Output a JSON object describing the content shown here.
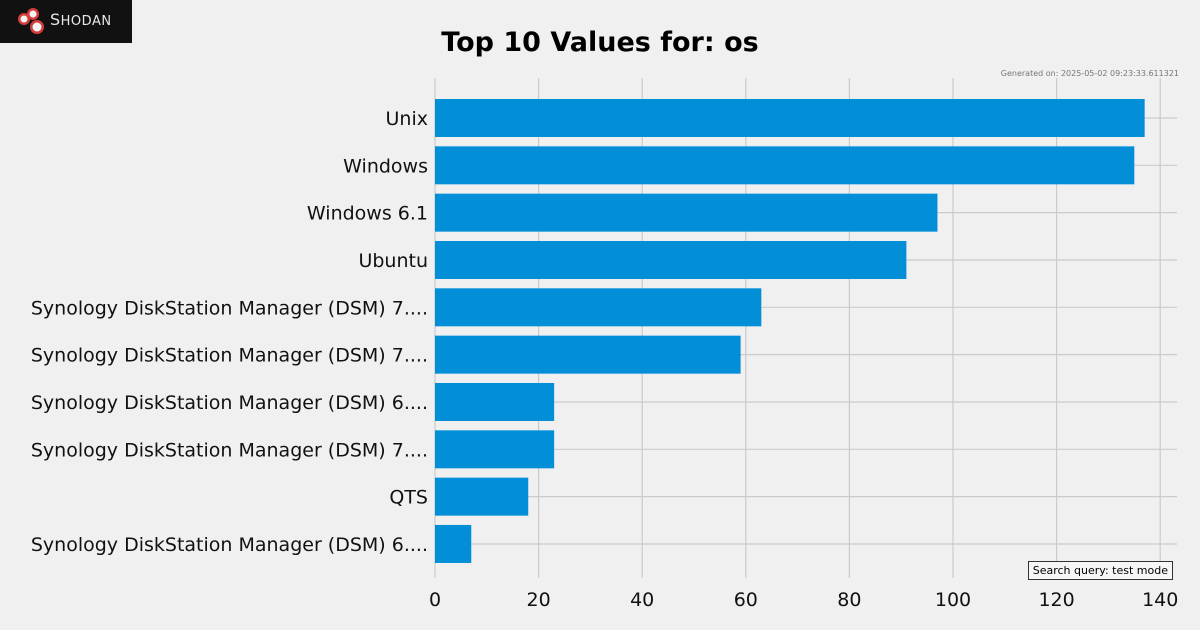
{
  "brand": {
    "name_initial": "S",
    "name_rest": "HODAN",
    "logo_icon": "shodan-logo-icon"
  },
  "generated_text": "Generated on: 2025-05-02 09:23:33.611321",
  "search_query_text": "Search query: test mode",
  "colors": {
    "bar": "#038fd7",
    "grid": "#cbcbcb",
    "background": "#f0f0f0",
    "logo_bg": "#111111",
    "logo_red": "#d63c3c"
  },
  "chart_data": {
    "type": "bar",
    "orientation": "horizontal",
    "title": "Top 10 Values for: os",
    "xlabel": "",
    "ylabel": "",
    "xlim": [
      0,
      143
    ],
    "xticks": [
      0,
      20,
      40,
      60,
      80,
      100,
      120,
      140
    ],
    "grid": true,
    "categories": [
      "Unix",
      "Windows",
      "Windows 6.1",
      "Ubuntu",
      "Synology DiskStation Manager (DSM) 7....",
      "Synology DiskStation Manager (DSM) 7....",
      "Synology DiskStation Manager (DSM) 6....",
      "Synology DiskStation Manager (DSM) 7....",
      "QTS",
      "Synology DiskStation Manager (DSM) 6...."
    ],
    "values": [
      137,
      135,
      97,
      91,
      63,
      59,
      23,
      23,
      18,
      7
    ]
  }
}
